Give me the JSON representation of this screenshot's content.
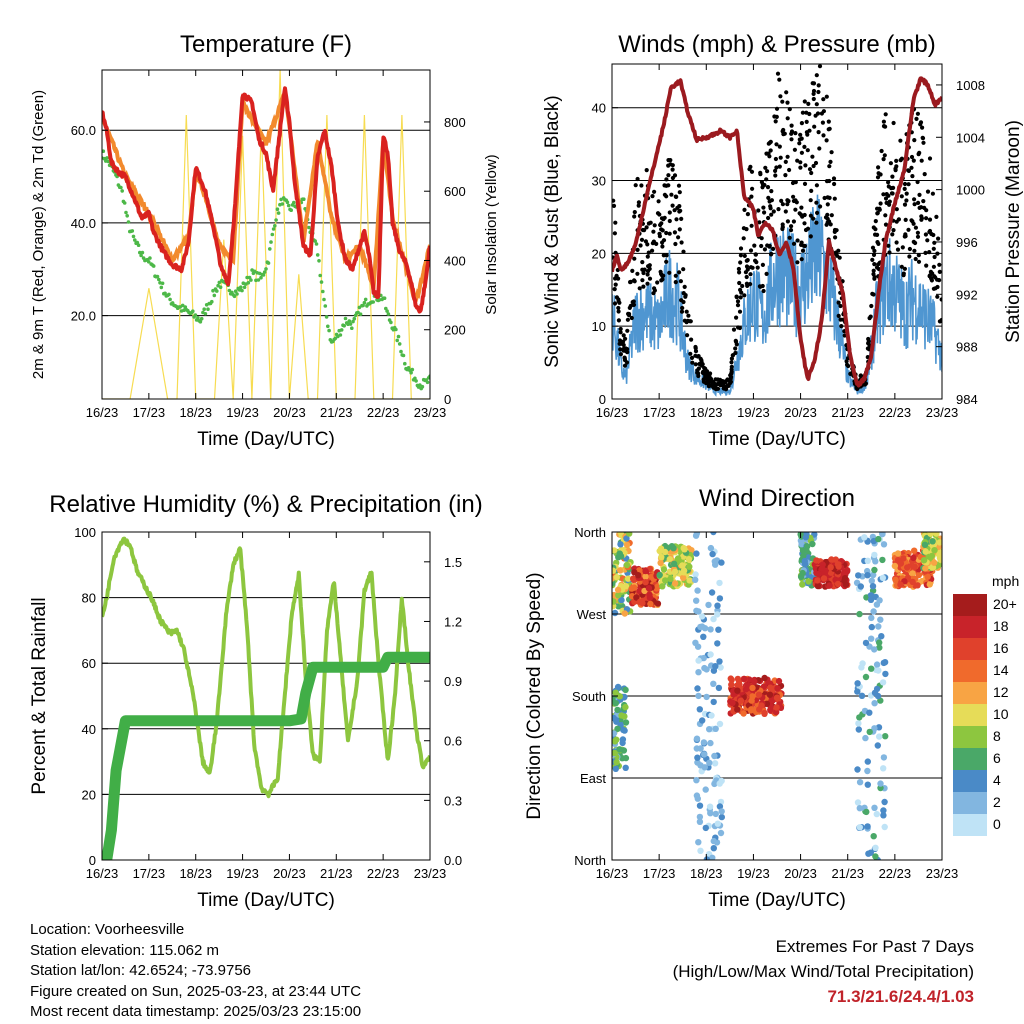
{
  "info": {
    "location": "Location: Voorheesville",
    "elevation": "Station elevation: 115.062 m",
    "latlon": "Station lat/lon: 42.6524; -73.9756",
    "created": "Figure created on Sun, 2025-03-23, at 23:44 UTC",
    "latest": "Most recent data timestamp: 2025/03/23 23:15:00"
  },
  "extremes": {
    "title": "Extremes For Past 7 Days",
    "subtitle": "(High/Low/Max Wind/Total Precipitation)",
    "values": "71.3/21.6/24.4/1.03"
  },
  "chart_data": [
    {
      "type": "line",
      "title": "Temperature (F)",
      "xlabel": "Time (Day/UTC)",
      "ylabel": "2m & 9m T (Red, Orange) & 2m Td (Green)",
      "y2label": "Solar Insolation (Yellow)",
      "x_ticks": [
        "16/23",
        "17/23",
        "18/23",
        "19/23",
        "20/23",
        "21/23",
        "22/23",
        "23/23"
      ],
      "xlim": [
        0,
        7
      ],
      "ylim": [
        2,
        73
      ],
      "y_ticks": [
        20,
        40,
        60
      ],
      "y_tick_labels": [
        "20.0",
        "40.0",
        "60.0"
      ],
      "y2lim": [
        0,
        950
      ],
      "y2_ticks": [
        0,
        200,
        400,
        600,
        800
      ],
      "grid_y": true,
      "colors": {
        "t2m": "#d9221f",
        "t9m": "#f28a2d",
        "td": "#4db848",
        "solar": "#f7dc52"
      },
      "series": [
        {
          "key": "t2m",
          "x": [
            0,
            0.1,
            0.2,
            0.35,
            0.5,
            0.7,
            0.85,
            1.0,
            1.1,
            1.3,
            1.5,
            1.7,
            1.85,
            2.0,
            2.2,
            2.4,
            2.55,
            2.7,
            2.85,
            3.0,
            3.2,
            3.35,
            3.5,
            3.65,
            3.8,
            3.9,
            4.0,
            4.1,
            4.3,
            4.45,
            4.6,
            4.75,
            4.9,
            5.05,
            5.2,
            5.35,
            5.5,
            5.6,
            5.7,
            5.8,
            5.9,
            6.0,
            6.1,
            6.2,
            6.35,
            6.5,
            6.6,
            6.7,
            6.8,
            6.9,
            7.0
          ],
          "y": [
            64,
            60,
            53,
            51,
            50,
            45,
            41,
            42,
            38,
            34,
            31,
            30,
            36,
            52,
            47,
            38,
            30,
            27,
            45,
            68,
            66,
            58,
            55,
            47,
            60,
            69,
            62,
            50,
            35,
            33,
            54,
            60,
            52,
            39,
            32,
            30,
            35,
            38,
            33,
            25,
            24,
            59,
            55,
            40,
            34,
            31,
            27,
            22,
            21,
            27,
            35
          ]
        },
        {
          "key": "t9m",
          "x": [
            0,
            0.5,
            1.0,
            1.5,
            1.85,
            2.0,
            2.2,
            2.5,
            2.8,
            3.0,
            3.5,
            3.9,
            4.0,
            4.3,
            4.6,
            4.9,
            5.2,
            5.5,
            5.8,
            6.0,
            6.2,
            6.5,
            6.7,
            7.0
          ],
          "y": [
            63,
            50,
            42,
            32,
            37,
            51,
            46,
            35,
            32,
            66,
            57,
            68,
            61,
            36,
            58,
            41,
            32,
            35,
            26,
            58,
            41,
            30,
            23,
            35
          ]
        },
        {
          "key": "td",
          "x": [
            0,
            0.15,
            0.3,
            0.45,
            0.55,
            0.7,
            0.85,
            1.0,
            1.2,
            1.4,
            1.6,
            1.8,
            1.95,
            2.1,
            2.3,
            2.5,
            2.7,
            2.85,
            3.0,
            3.2,
            3.4,
            3.55,
            3.7,
            3.85,
            4.0,
            4.15,
            4.3,
            4.45,
            4.6,
            4.75,
            4.9,
            5.05,
            5.2,
            5.35,
            5.5,
            5.65,
            5.8,
            6.0,
            6.1,
            6.2,
            6.35,
            6.5,
            6.65,
            6.8,
            7.0
          ],
          "y": [
            55,
            53,
            50,
            46,
            40,
            36,
            33,
            32,
            28,
            24,
            22,
            21,
            20,
            19,
            23,
            27,
            26,
            25,
            26,
            29,
            28,
            32,
            41,
            45,
            43,
            44,
            45,
            38,
            34,
            22,
            14,
            16,
            19,
            18,
            21,
            23,
            24,
            24,
            20,
            18,
            14,
            9,
            7,
            5,
            6
          ]
        },
        {
          "key": "solar",
          "x": [
            0,
            0.6,
            1.0,
            1.4,
            1.6,
            1.8,
            2.0,
            2.2,
            2.4,
            2.6,
            2.8,
            3.0,
            3.2,
            3.4,
            3.6,
            3.8,
            4.0,
            4.2,
            4.4,
            4.6,
            4.8,
            5.0,
            5.2,
            5.4,
            5.6,
            5.8,
            6.0,
            6.2,
            6.4,
            6.6,
            6.8,
            7.0
          ],
          "y": [
            0,
            0,
            320,
            0,
            0,
            820,
            0,
            0,
            0,
            460,
            0,
            760,
            0,
            780,
            0,
            950,
            0,
            360,
            0,
            0,
            820,
            0,
            0,
            0,
            820,
            0,
            0,
            0,
            820,
            0,
            0,
            0
          ]
        }
      ]
    },
    {
      "type": "line",
      "title": "Winds (mph) & Pressure (mb)",
      "xlabel": "Time (Day/UTC)",
      "ylabel": "Sonic Wind & Gust (Blue, Black)",
      "y2label": "Station Pressure (Maroon)",
      "x_ticks": [
        "16/23",
        "17/23",
        "18/23",
        "19/23",
        "20/23",
        "21/23",
        "22/23",
        "23/23"
      ],
      "xlim": [
        0,
        7
      ],
      "ylim": [
        0,
        46
      ],
      "y_ticks": [
        0,
        10,
        20,
        30,
        40
      ],
      "y2lim": [
        984,
        1009.6
      ],
      "y2_ticks": [
        984,
        988,
        992,
        996,
        1000,
        1004,
        1008
      ],
      "grid_y": true,
      "colors": {
        "wind": "#4f96d1",
        "gust": "#000000",
        "pressure": "#9b1a1f"
      },
      "series": [
        {
          "key": "wind",
          "x": [
            0,
            0.2,
            0.3,
            0.5,
            0.7,
            1.0,
            1.2,
            1.4,
            1.6,
            1.8,
            2.0,
            2.2,
            2.5,
            2.8,
            3.0,
            3.2,
            3.5,
            3.8,
            4.0,
            4.2,
            4.4,
            4.6,
            4.8,
            5.0,
            5.2,
            5.4,
            5.6,
            5.8,
            6.0,
            6.2,
            6.4,
            6.6,
            6.8,
            7.0
          ],
          "y": [
            12,
            4,
            3,
            11,
            12,
            10,
            15,
            13,
            5,
            3,
            2,
            1,
            1,
            10,
            14,
            11,
            18,
            16,
            15,
            18,
            20,
            16,
            10,
            3,
            1,
            2,
            11,
            16,
            15,
            12,
            14,
            12,
            10,
            6
          ]
        },
        {
          "key": "gust",
          "x": [
            0,
            0.2,
            0.3,
            0.5,
            0.7,
            1.0,
            1.2,
            1.4,
            1.6,
            1.8,
            2.0,
            2.2,
            2.5,
            2.8,
            3.0,
            3.2,
            3.5,
            3.8,
            4.0,
            4.2,
            4.4,
            4.6,
            4.8,
            5.0,
            5.2,
            5.4,
            5.6,
            5.8,
            6.0,
            6.2,
            6.4,
            6.6,
            6.8,
            7.0
          ],
          "y": [
            24,
            8,
            6,
            22,
            24,
            20,
            26,
            24,
            10,
            5,
            3,
            2,
            2,
            20,
            26,
            22,
            34,
            30,
            28,
            34,
            38,
            30,
            18,
            6,
            2,
            3,
            22,
            30,
            28,
            26,
            30,
            28,
            24,
            12
          ]
        },
        {
          "key": "pressure",
          "x": [
            0,
            0.1,
            0.2,
            0.35,
            0.5,
            0.7,
            0.9,
            1.1,
            1.25,
            1.45,
            1.6,
            1.8,
            2.0,
            2.15,
            2.3,
            2.5,
            2.65,
            2.8,
            3.0,
            3.1,
            3.25,
            3.4,
            3.55,
            3.7,
            3.85,
            4.0,
            4.15,
            4.3,
            4.45,
            4.6,
            4.75,
            4.9,
            5.05,
            5.2,
            5.35,
            5.5,
            5.65,
            5.8,
            6.0,
            6.2,
            6.4,
            6.55,
            6.7,
            6.85,
            7.0
          ],
          "y": [
            993.8,
            995,
            993.8,
            994.5,
            995.8,
            999,
            1002,
            1005,
            1007.8,
            1008.3,
            1006,
            1003.8,
            1004,
            1004.2,
            1004.5,
            1004,
            1004.5,
            999.5,
            998.5,
            996.5,
            997.5,
            997,
            995,
            996,
            994,
            988.5,
            985.5,
            987,
            990,
            996,
            994,
            992,
            987.3,
            985,
            985.5,
            987.3,
            992,
            996,
            999,
            1001.5,
            1007,
            1008.5,
            1008,
            1006.5,
            1007
          ]
        }
      ]
    },
    {
      "type": "line",
      "title": "Relative Humidity (%) & Precipitation (in)",
      "xlabel": "Time (Day/UTC)",
      "ylabel": "Percent & Total Rainfall",
      "x_ticks": [
        "16/23",
        "17/23",
        "18/23",
        "19/23",
        "20/23",
        "21/23",
        "22/23",
        "23/23"
      ],
      "xlim": [
        0,
        7
      ],
      "ylim": [
        0,
        100
      ],
      "y_ticks": [
        0,
        20,
        40,
        60,
        80,
        100
      ],
      "y2lim": [
        0,
        1.65
      ],
      "y2_ticks": [
        0.0,
        0.3,
        0.6,
        0.9,
        1.2,
        1.5
      ],
      "y2_tick_labels": [
        "0.0",
        "0.3",
        "0.6",
        "0.9",
        "1.2",
        "1.5"
      ],
      "grid_y": true,
      "colors": {
        "rh": "#8dc63f",
        "precip": "#41ae47"
      },
      "series": [
        {
          "key": "rh",
          "x": [
            0,
            0.1,
            0.25,
            0.45,
            0.6,
            0.75,
            0.9,
            1.05,
            1.25,
            1.45,
            1.6,
            1.75,
            1.95,
            2.15,
            2.3,
            2.45,
            2.65,
            2.8,
            2.95,
            3.1,
            3.25,
            3.4,
            3.55,
            3.75,
            3.9,
            4.05,
            4.2,
            4.35,
            4.5,
            4.65,
            4.8,
            4.95,
            5.1,
            5.25,
            5.45,
            5.6,
            5.75,
            5.9,
            6.1,
            6.25,
            6.4,
            6.55,
            6.7,
            6.85,
            7.0
          ],
          "y": [
            74,
            80,
            92,
            98,
            96,
            88,
            84,
            80,
            73,
            69,
            70,
            64,
            50,
            30,
            26,
            42,
            75,
            90,
            95,
            70,
            35,
            22,
            20,
            25,
            50,
            75,
            87,
            55,
            32,
            30,
            70,
            85,
            60,
            36,
            55,
            82,
            88,
            60,
            30,
            50,
            80,
            58,
            40,
            28,
            32
          ]
        },
        {
          "key": "precip",
          "x": [
            0,
            0.1,
            0.2,
            0.3,
            0.5,
            1.0,
            2.0,
            3.0,
            4.0,
            4.25,
            4.35,
            4.5,
            5.0,
            5.5,
            6.0,
            6.1,
            6.5,
            7.0
          ],
          "y": [
            0.0,
            0.0,
            0.15,
            0.45,
            0.7,
            0.7,
            0.7,
            0.7,
            0.7,
            0.71,
            0.84,
            0.97,
            0.97,
            0.97,
            0.97,
            1.02,
            1.02,
            1.02
          ]
        }
      ]
    },
    {
      "type": "scatter",
      "title": "Wind Direction",
      "xlabel": "Time (Day/UTC)",
      "ylabel": "Direction (Colored By Speed)",
      "x_ticks": [
        "16/23",
        "17/23",
        "18/23",
        "19/23",
        "20/23",
        "21/23",
        "22/23",
        "23/23"
      ],
      "xlim": [
        0,
        7
      ],
      "ylim": [
        0,
        360
      ],
      "y_ticks": [
        0,
        90,
        180,
        270,
        360
      ],
      "y_tick_labels": [
        "North",
        "East",
        "South",
        "West",
        "North"
      ],
      "grid_y": true,
      "legend": {
        "title": "mph",
        "placement": "right",
        "labels": [
          "20+",
          "18",
          "16",
          "14",
          "12",
          "10",
          "8",
          "6",
          "4",
          "2",
          "0"
        ],
        "colors": [
          "#a51c1c",
          "#c8232a",
          "#e0412c",
          "#f06a2c",
          "#f8a444",
          "#e6dc58",
          "#8dc63f",
          "#4aa868",
          "#4a8ac7",
          "#82b6e0",
          "#bfe3f6"
        ]
      },
      "clusters": [
        {
          "x": [
            0,
            0.4
          ],
          "dir": [
            270,
            360
          ],
          "speed": [
            4,
            14
          ]
        },
        {
          "x": [
            0.4,
            1.0
          ],
          "dir": [
            280,
            320
          ],
          "speed": [
            12,
            20
          ]
        },
        {
          "x": [
            1.0,
            1.7
          ],
          "dir": [
            300,
            345
          ],
          "speed": [
            6,
            12
          ]
        },
        {
          "x": [
            1.75,
            2.35
          ],
          "dir": [
            0,
            360
          ],
          "speed": [
            0,
            4
          ]
        },
        {
          "x": [
            2.5,
            3.6
          ],
          "dir": [
            160,
            200
          ],
          "speed": [
            14,
            20
          ]
        },
        {
          "x": [
            4.0,
            4.3
          ],
          "dir": [
            300,
            360
          ],
          "speed": [
            2,
            8
          ]
        },
        {
          "x": [
            4.3,
            5.0
          ],
          "dir": [
            300,
            330
          ],
          "speed": [
            16,
            20
          ]
        },
        {
          "x": [
            5.2,
            5.8
          ],
          "dir": [
            0,
            360
          ],
          "speed": [
            0,
            6
          ]
        },
        {
          "x": [
            6.0,
            6.8
          ],
          "dir": [
            300,
            340
          ],
          "speed": [
            12,
            18
          ]
        },
        {
          "x": [
            6.6,
            7.0
          ],
          "dir": [
            320,
            360
          ],
          "speed": [
            6,
            12
          ]
        },
        {
          "x": [
            0,
            0.3
          ],
          "dir": [
            100,
            190
          ],
          "speed": [
            2,
            8
          ]
        }
      ]
    }
  ]
}
